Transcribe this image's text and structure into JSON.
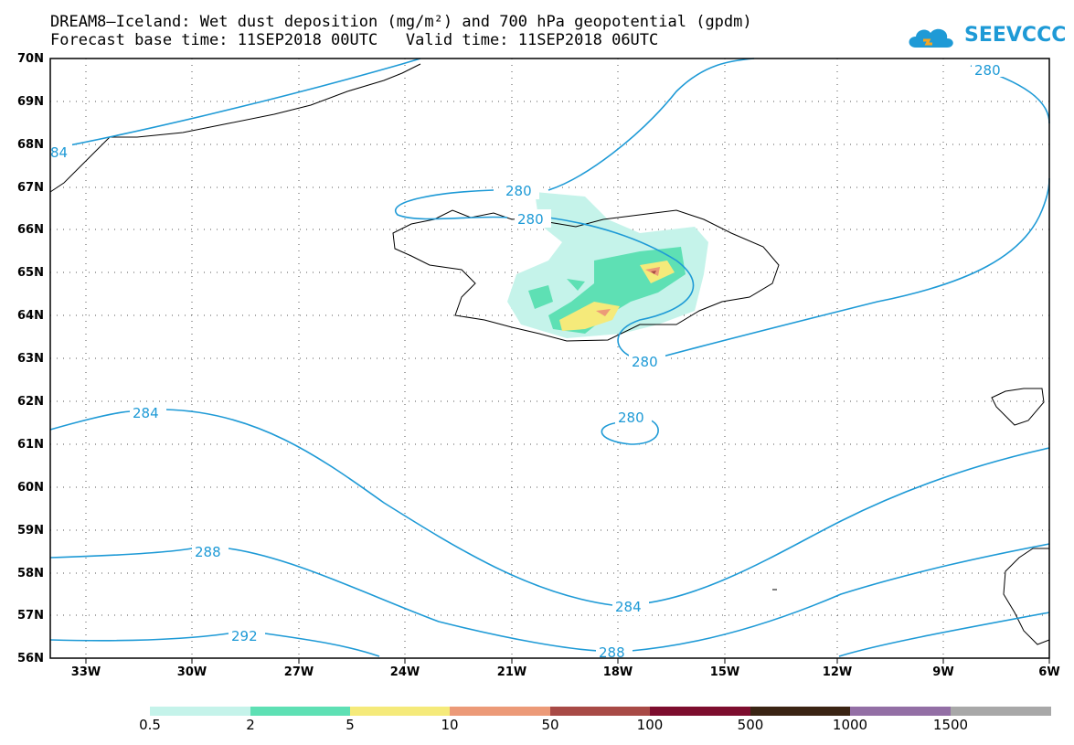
{
  "title_line1": "DREAM8–Iceland: Wet dust deposition (mg/m²) and 700 hPa geopotential (gpdm)",
  "title_line2": "Forecast base time: 11SEP2018 00UTC   Valid time: 11SEP2018 06UTC",
  "logo_text": "SEEVCCC",
  "lat_labels": [
    "70N",
    "69N",
    "68N",
    "67N",
    "66N",
    "65N",
    "64N",
    "63N",
    "62N",
    "61N",
    "60N",
    "59N",
    "58N",
    "57N",
    "56N"
  ],
  "lon_labels": [
    "33W",
    "30W",
    "27W",
    "24W",
    "21W",
    "18W",
    "15W",
    "12W",
    "9W",
    "6W"
  ],
  "contour_labels": [
    "280",
    "280",
    "280",
    "280",
    "280",
    "284",
    "284",
    "288",
    "288",
    "292",
    "84"
  ],
  "colorbar_labels": [
    "0.5",
    "2",
    "5",
    "10",
    "50",
    "100",
    "500",
    "1000",
    "1500"
  ],
  "colorbar_colors": [
    "#c5f3ea",
    "#5ee0b4",
    "#f5ea7a",
    "#ec9a78",
    "#a84a46",
    "#7d0d2e",
    "#3a2414",
    "#936fa5",
    "#a8a8a8"
  ]
}
